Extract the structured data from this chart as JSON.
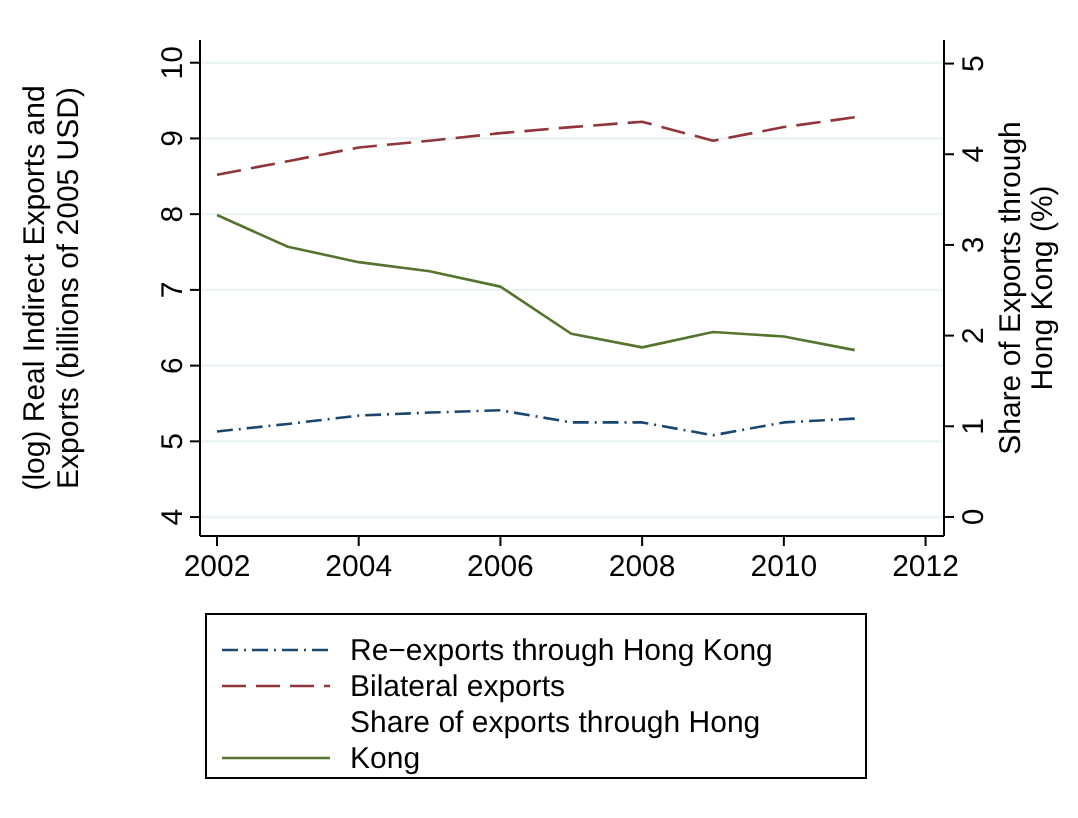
{
  "chart_data": {
    "type": "line",
    "xlabel": null,
    "ylabel": "(log) Real Indirect Exports and Exports (billions of 2005 USD)",
    "y2label": "Share of Exports through Hong Kong (%)",
    "x": [
      2002,
      2003,
      2004,
      2005,
      2006,
      2007,
      2008,
      2009,
      2010,
      2011
    ],
    "series": [
      {
        "name": "Re−exports through Hong Kong",
        "color": "#1a476f",
        "line_style": "dashdot",
        "values": [
          5.13,
          5.23,
          5.34,
          5.38,
          5.41,
          5.25,
          5.25,
          5.08,
          5.25,
          5.3
        ]
      },
      {
        "name": "Bilateral exports",
        "color": "#90353b",
        "line_style": "dashed",
        "values": [
          8.52,
          8.7,
          8.88,
          8.97,
          9.07,
          9.15,
          9.22,
          8.97,
          9.15,
          9.28
        ]
      },
      {
        "name": "Share of exports through Hong Kong",
        "color": "#55752f",
        "line_style": "solid",
        "axis": "y2",
        "values": [
          3.33,
          2.98,
          2.81,
          2.71,
          2.54,
          2.02,
          1.87,
          2.04,
          1.99,
          1.84
        ]
      }
    ],
    "xlim": [
      2001.76,
      2012.26
    ],
    "xticks": [
      2002,
      2004,
      2006,
      2008,
      2010,
      2012
    ],
    "ylim": [
      3.75,
      10.3
    ],
    "yticks": [
      4,
      5,
      6,
      7,
      8,
      9,
      10
    ],
    "y2lim": [
      -0.21,
      5.26
    ],
    "y2ticks": [
      0,
      1,
      2,
      3,
      4,
      5
    ],
    "grid": "y",
    "legend": "bottom",
    "marker": "none"
  }
}
